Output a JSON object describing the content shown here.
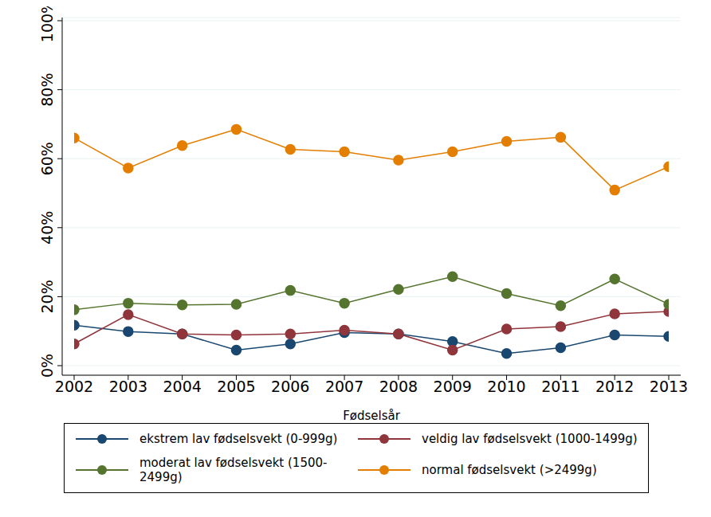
{
  "chart_data": {
    "type": "line",
    "x_label": "Fødselsår",
    "x": [
      2002,
      2003,
      2004,
      2005,
      2006,
      2007,
      2008,
      2009,
      2010,
      2011,
      2012,
      2013
    ],
    "xlim": [
      2002,
      2013
    ],
    "xticks": [
      2002,
      2003,
      2004,
      2005,
      2006,
      2007,
      2008,
      2009,
      2010,
      2011,
      2012,
      2013
    ],
    "ylim": [
      0,
      100
    ],
    "yticks": [
      {
        "value": 0,
        "label": "0%"
      },
      {
        "value": 20,
        "label": "20%"
      },
      {
        "value": 40,
        "label": "40%"
      },
      {
        "value": 60,
        "label": "60%"
      },
      {
        "value": 80,
        "label": "80%"
      },
      {
        "value": 100,
        "label": "100%"
      }
    ],
    "grid": true,
    "legend": "bottom",
    "series": [
      {
        "name": "ekstrem lav fødselsvekt (0-999g)",
        "color": "#1a476f",
        "marker": "circle",
        "values": [
          11.7,
          9.9,
          9.2,
          4.5,
          6.3,
          9.6,
          9.2,
          7.0,
          3.5,
          5.2,
          8.9,
          8.5
        ]
      },
      {
        "name": "veldig lav fødselsvekt (1000-1499g)",
        "color": "#90353b",
        "marker": "circle",
        "values": [
          6.3,
          14.8,
          9.2,
          8.9,
          9.2,
          10.3,
          9.2,
          4.5,
          10.6,
          11.3,
          15.0,
          15.7
        ]
      },
      {
        "name": "moderat lav fødselsvekt (1500-2499g)",
        "color": "#55752f",
        "marker": "circle",
        "values": [
          16.2,
          18.1,
          17.6,
          17.8,
          21.8,
          18.1,
          22.1,
          25.8,
          20.9,
          17.4,
          25.1,
          17.8
        ]
      },
      {
        "name": "normal fødselsvekt (>2499g)",
        "color": "#e37e00",
        "marker": "circle",
        "values": [
          66.0,
          57.3,
          63.8,
          68.5,
          62.7,
          62.0,
          59.6,
          62.0,
          65.0,
          66.2,
          50.9,
          57.7
        ]
      }
    ]
  }
}
